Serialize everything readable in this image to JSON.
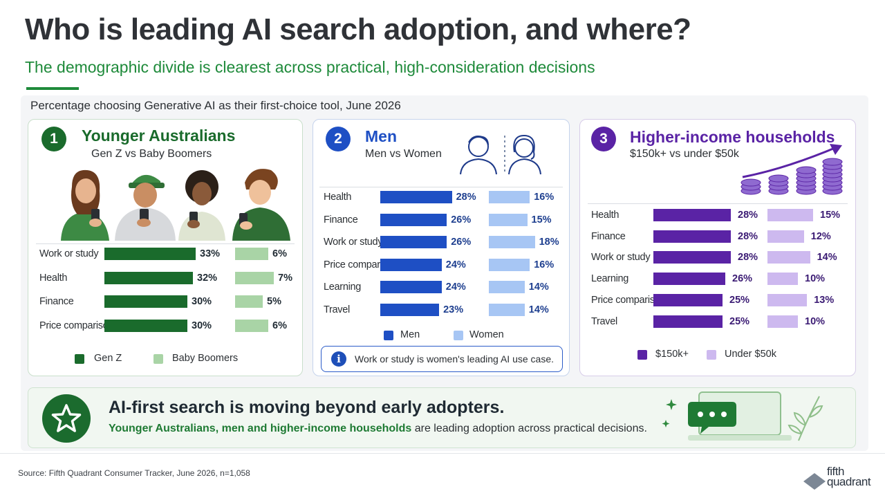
{
  "title": "Who is leading AI search adoption, and where?",
  "subtitle": "The demographic divide is clearest across practical, high-consideration decisions",
  "chart_caption": "Percentage choosing Generative AI as their first-choice tool, June 2026",
  "colors": {
    "green_dark": "#1a6b2c",
    "green_light": "#a9d4a6",
    "blue_dark": "#1e4fc4",
    "blue_light": "#a7c6f4",
    "purple_dark": "#5a23a5",
    "purple_light": "#cdb9ef"
  },
  "chart_data": [
    {
      "type": "bar",
      "badge": "1",
      "title": "Younger Australians",
      "subtitle": "Gen Z vs Baby Boomers",
      "categories": [
        "Work or study",
        "Health",
        "Finance",
        "Price comparison"
      ],
      "series": [
        {
          "name": "Gen Z",
          "values": [
            33,
            32,
            30,
            30
          ]
        },
        {
          "name": "Baby Boomers",
          "values": [
            6,
            7,
            5,
            6
          ]
        }
      ],
      "value_labels": [
        [
          "33%",
          "32%",
          "30%",
          "30%"
        ],
        [
          "6%",
          "7%",
          "5%",
          "6%"
        ]
      ],
      "legend": "bottom"
    },
    {
      "type": "bar",
      "badge": "2",
      "title": "Men",
      "subtitle": "Men vs Women",
      "categories": [
        "Health",
        "Finance",
        "Work or study",
        "Price comparison",
        "Learning",
        "Travel"
      ],
      "series": [
        {
          "name": "Men",
          "values": [
            28,
            26,
            26,
            24,
            24,
            23
          ]
        },
        {
          "name": "Women",
          "values": [
            16,
            15,
            18,
            16,
            14,
            14
          ]
        }
      ],
      "value_labels": [
        [
          "28%",
          "26%",
          "26%",
          "24%",
          "24%",
          "23%"
        ],
        [
          "16%",
          "15%",
          "18%",
          "16%",
          "14%",
          "14%"
        ]
      ],
      "legend": "bottom",
      "annotation": "Work or study is women's leading AI use case."
    },
    {
      "type": "bar",
      "badge": "3",
      "title": "Higher-income households",
      "subtitle": "$150k+ vs under $50k",
      "categories": [
        "Health",
        "Finance",
        "Work or study",
        "Learning",
        "Price comparison",
        "Travel"
      ],
      "series": [
        {
          "name": "$150k+",
          "values": [
            28,
            28,
            28,
            26,
            25,
            25
          ]
        },
        {
          "name": "Under $50k",
          "values": [
            15,
            12,
            14,
            10,
            13,
            10
          ]
        }
      ],
      "value_labels": [
        [
          "28%",
          "28%",
          "28%",
          "26%",
          "25%",
          "25%"
        ],
        [
          "15%",
          "12%",
          "14%",
          "10%",
          "13%",
          "10%"
        ]
      ],
      "legend": "bottom"
    }
  ],
  "banner": {
    "headline": "AI-first search is moving beyond early adopters.",
    "highlight": "Younger Australians, men and higher-income households",
    "rest": " are leading adoption across practical decisions."
  },
  "source": "Source: Fifth Quadrant Consumer Tracker, June 2026, n=1,058",
  "logo": {
    "line1": "fifth",
    "line2": "quadrant"
  }
}
